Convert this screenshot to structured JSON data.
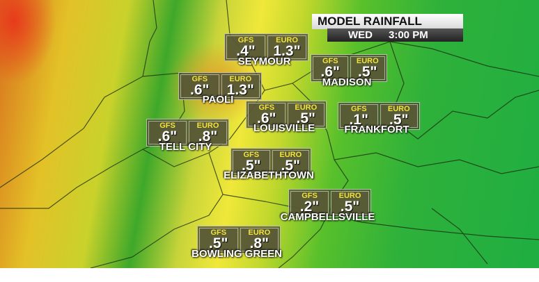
{
  "header": {
    "title": "MODEL RAINFALL",
    "day": "WED",
    "time": "3:00 PM"
  },
  "models": [
    "GFS",
    "EURO"
  ],
  "cities": [
    {
      "name": "SEYMOUR",
      "gfs": ".4\"",
      "euro": "1.3\""
    },
    {
      "name": "MADISON",
      "gfs": ".6\"",
      "euro": ".5\""
    },
    {
      "name": "PAOLI",
      "gfs": ".6\"",
      "euro": "1.3\""
    },
    {
      "name": "LOUISVILLE",
      "gfs": ".6\"",
      "euro": ".5\""
    },
    {
      "name": "FRANKFORT",
      "gfs": ".1\"",
      "euro": ".5\""
    },
    {
      "name": "TELL CITY",
      "gfs": ".6\"",
      "euro": ".8\""
    },
    {
      "name": "ELIZABETHTOWN",
      "gfs": ".5\"",
      "euro": ".5\""
    },
    {
      "name": "CAMPBELLSVILLE",
      "gfs": ".2\"",
      "euro": ".5\""
    },
    {
      "name": "BOWLING GREEN",
      "gfs": ".5\"",
      "euro": ".8\""
    }
  ]
}
